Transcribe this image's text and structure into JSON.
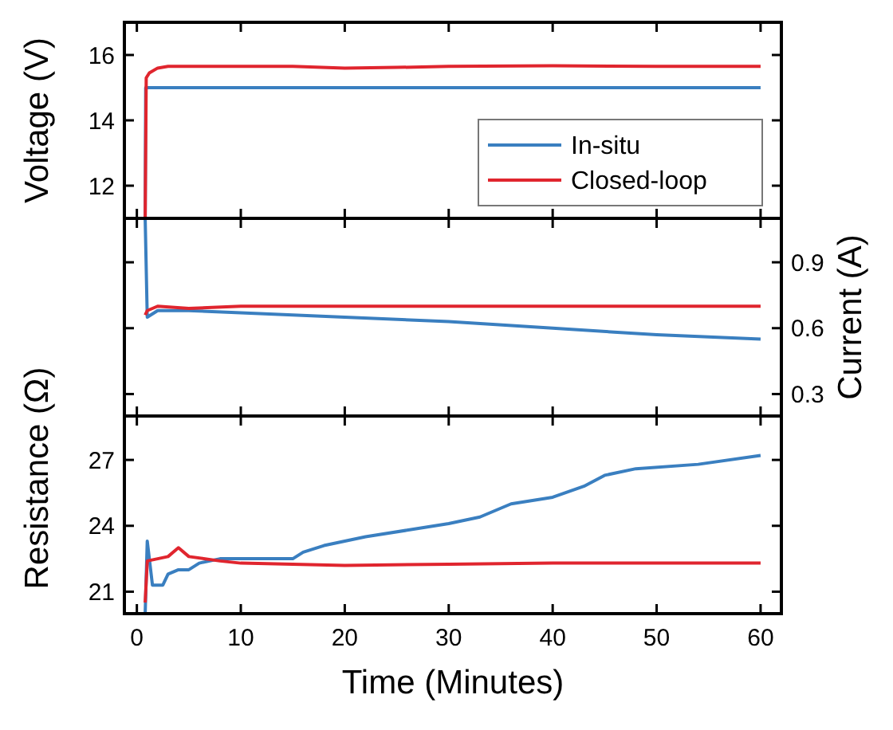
{
  "chart_data": [
    {
      "type": "line",
      "ylabel": "Voltage (V)",
      "xlim": [
        -1.2,
        62
      ],
      "xticks": [
        0,
        10,
        20,
        30,
        40,
        50,
        60
      ],
      "ylim": [
        11,
        17
      ],
      "yticks": [
        12,
        14,
        16
      ],
      "tick_labels": "y",
      "legend": "bottom right",
      "series": [
        {
          "name": "In-situ",
          "color": "#3a7fc0",
          "x": [
            0.8,
            0.85,
            10,
            20,
            30,
            40,
            50,
            60
          ],
          "values": [
            11,
            15.0,
            15.0,
            15.0,
            15.0,
            15.0,
            15.0,
            15.0
          ]
        },
        {
          "name": "Closed-loop",
          "color": "#e0252e",
          "x": [
            0.8,
            0.9,
            1.2,
            2,
            3,
            5,
            10,
            15,
            20,
            25,
            30,
            40,
            50,
            60
          ],
          "values": [
            11,
            15.3,
            15.45,
            15.6,
            15.65,
            15.65,
            15.65,
            15.65,
            15.6,
            15.62,
            15.65,
            15.67,
            15.65,
            15.65
          ]
        }
      ]
    },
    {
      "type": "line",
      "y2label": "Current (A)",
      "xlim": [
        -1.2,
        62
      ],
      "xticks": [
        0,
        10,
        20,
        30,
        40,
        50,
        60
      ],
      "y2lim": [
        0.2,
        1.1
      ],
      "y2ticks": [
        0.3,
        0.6,
        0.9
      ],
      "tick_labels": "y",
      "series": [
        {
          "color": "#3a7fc0",
          "axis": "y2",
          "x": [
            0.8,
            1,
            2,
            5,
            10,
            20,
            30,
            40,
            50,
            60
          ],
          "values": [
            1.1,
            0.65,
            0.68,
            0.68,
            0.67,
            0.65,
            0.63,
            0.6,
            0.57,
            0.55
          ]
        },
        {
          "color": "#e0252e",
          "axis": "y2",
          "x": [
            0.8,
            1,
            2,
            5,
            10,
            20,
            30,
            40,
            50,
            60
          ],
          "values": [
            0.66,
            0.68,
            0.7,
            0.69,
            0.7,
            0.7,
            0.7,
            0.7,
            0.7,
            0.7
          ]
        }
      ]
    },
    {
      "type": "line",
      "xlabel": "Time (Minutes)",
      "ylabel": "Resistance (Ω)",
      "xlim": [
        -1.2,
        62
      ],
      "xticks": [
        0,
        10,
        20,
        30,
        40,
        50,
        60
      ],
      "ylim": [
        20,
        29
      ],
      "yticks": [
        21,
        24,
        27
      ],
      "series": [
        {
          "color": "#3a7fc0",
          "x": [
            0.8,
            1,
            1.5,
            2.5,
            3,
            4,
            5,
            6,
            8,
            15,
            16,
            18,
            22,
            26,
            30,
            33,
            36,
            40,
            43,
            45,
            48,
            54,
            60
          ],
          "values": [
            20,
            23.3,
            21.3,
            21.3,
            21.8,
            22.0,
            22.0,
            22.3,
            22.5,
            22.5,
            22.8,
            23.1,
            23.5,
            23.8,
            24.1,
            24.4,
            25.0,
            25.3,
            25.8,
            26.3,
            26.6,
            26.8,
            27.2
          ]
        },
        {
          "color": "#e0252e",
          "x": [
            0.8,
            1,
            2,
            3,
            4,
            5,
            8,
            10,
            20,
            30,
            40,
            50,
            60
          ],
          "values": [
            20.5,
            22.4,
            22.5,
            22.6,
            23.0,
            22.6,
            22.4,
            22.3,
            22.2,
            22.25,
            22.3,
            22.3,
            22.3
          ]
        }
      ]
    }
  ]
}
